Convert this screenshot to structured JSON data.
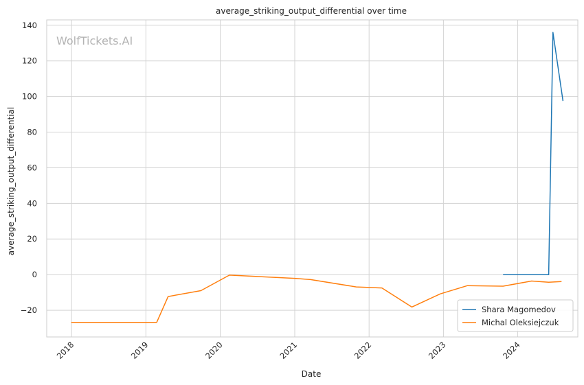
{
  "chart_data": {
    "type": "line",
    "title": "average_striking_output_differential over time",
    "xlabel": "Date",
    "ylabel": "average_striking_output_differential",
    "watermark": "WolfTickets.AI",
    "xlim": [
      "2017-09-01",
      "2024-10-22"
    ],
    "ylim": [
      -35,
      143
    ],
    "x_ticks": [
      "2018",
      "2019",
      "2020",
      "2021",
      "2022",
      "2023",
      "2024"
    ],
    "x_tick_dates": [
      "2018-01-01",
      "2019-01-01",
      "2020-01-01",
      "2021-01-01",
      "2022-01-01",
      "2023-01-01",
      "2024-01-01"
    ],
    "y_ticks": [
      -20,
      0,
      20,
      40,
      60,
      80,
      100,
      120,
      140
    ],
    "y_tick_labels": [
      "−20",
      "0",
      "20",
      "40",
      "60",
      "80",
      "100",
      "120",
      "140"
    ],
    "grid": true,
    "legend": "lower-right",
    "series": [
      {
        "name": "Shara Magomedov",
        "color": "#1f77b4",
        "points": [
          {
            "x": "2023-10-21",
            "y": 0
          },
          {
            "x": "2024-06-01",
            "y": 0
          },
          {
            "x": "2024-06-22",
            "y": 136
          },
          {
            "x": "2024-08-10",
            "y": 97.5
          }
        ]
      },
      {
        "name": "Michal Oleksiejczuk",
        "color": "#ff7f0e",
        "points": [
          {
            "x": "2017-12-30",
            "y": -26.8
          },
          {
            "x": "2019-02-23",
            "y": -26.8
          },
          {
            "x": "2019-04-20",
            "y": -12.3
          },
          {
            "x": "2019-09-28",
            "y": -9
          },
          {
            "x": "2020-02-15",
            "y": -0.3
          },
          {
            "x": "2021-01-01",
            "y": -2.1
          },
          {
            "x": "2021-03-20",
            "y": -2.8
          },
          {
            "x": "2021-10-30",
            "y": -6.9
          },
          {
            "x": "2022-03-05",
            "y": -7.5
          },
          {
            "x": "2022-07-30",
            "y": -18.2
          },
          {
            "x": "2022-12-17",
            "y": -10.8
          },
          {
            "x": "2023-04-29",
            "y": -6.2
          },
          {
            "x": "2023-10-21",
            "y": -6.5
          },
          {
            "x": "2024-03-09",
            "y": -3.6
          },
          {
            "x": "2024-06-01",
            "y": -4.3
          },
          {
            "x": "2024-08-03",
            "y": -3.9
          }
        ]
      }
    ]
  }
}
